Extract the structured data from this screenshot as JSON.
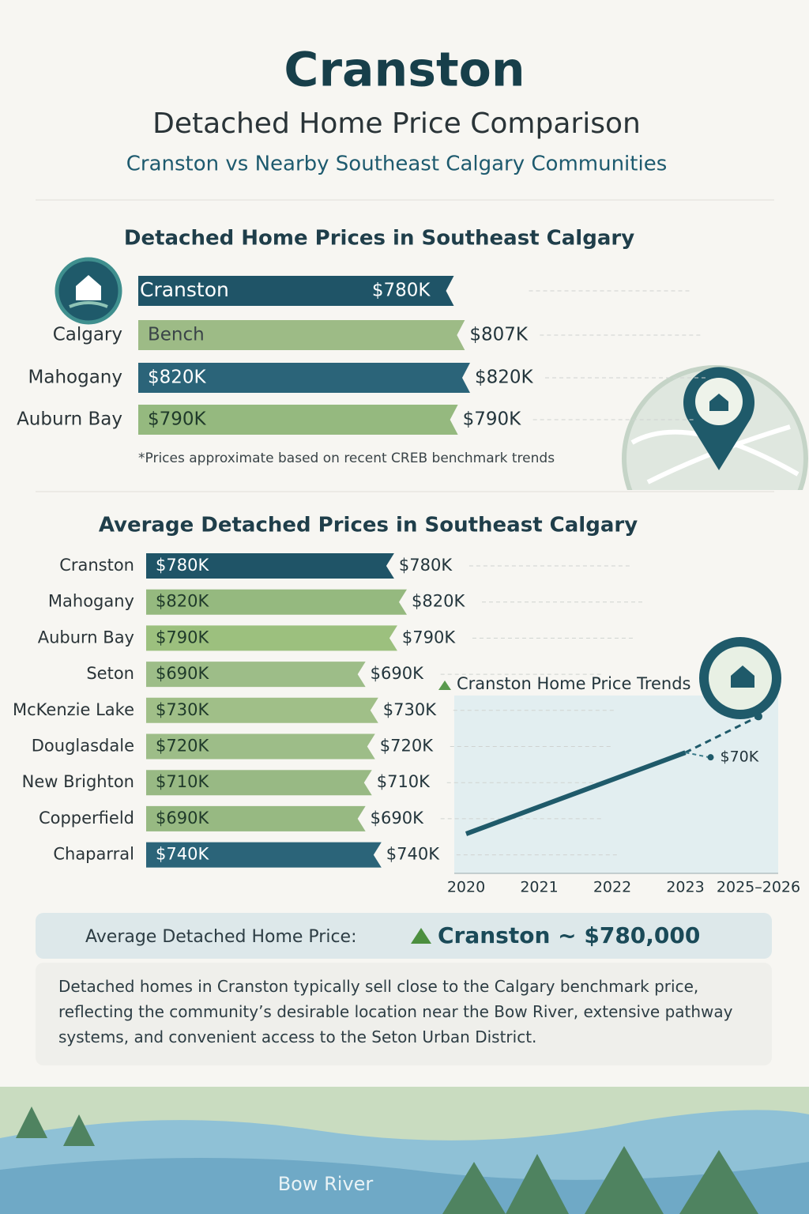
{
  "header": {
    "title": "Cranston",
    "subtitle": "Detached Home Price Comparison",
    "tagline": "Cranston vs Nearby Southeast Calgary Communities"
  },
  "chart_data": [
    {
      "type": "bar",
      "title": "Detached Home Prices in Southeast Calgary",
      "categories": [
        "Cranston",
        "Calgary",
        "Mahogany",
        "Auburn Bay"
      ],
      "values": [
        780,
        807,
        820,
        790
      ],
      "value_labels": [
        "$780K",
        "$807K",
        "$820K",
        "$790K"
      ],
      "inner_labels": [
        null,
        "Bench",
        "$820K",
        "$790K"
      ],
      "colors": [
        "#1f5467",
        "#9dbb86",
        "#2b6479",
        "#95b97f"
      ],
      "note": "*Prices approximate based on recent CREB benchmark trends"
    },
    {
      "type": "bar",
      "title": "Average Detached Prices in Southeast Calgary",
      "categories": [
        "Cranston",
        "Mahogany",
        "Auburn Bay",
        "Seton",
        "McKenzie Lake",
        "Douglasdale",
        "New Brighton",
        "Copperfield",
        "Chaparral"
      ],
      "values": [
        780,
        820,
        790,
        690,
        730,
        720,
        710,
        690,
        740
      ],
      "value_labels": [
        "$780K",
        "$820K",
        "$790K",
        "$690K",
        "$730K",
        "$720K",
        "$710K",
        "$690K",
        "$740K"
      ],
      "colors": [
        "#1f5467",
        "#95b97f",
        "#9cc07e",
        "#9dbd88",
        "#a0bf88",
        "#9dbd88",
        "#98b984",
        "#97b982",
        "#2b6479"
      ]
    },
    {
      "type": "line",
      "title": "Cranston Home Price Trends",
      "categories": [
        "2020",
        "2021",
        "2022",
        "2023",
        "2025–2026"
      ],
      "series": [
        {
          "color": "#1f5a6a",
          "values": [
            520,
            580,
            640,
            700,
            null
          ]
        },
        {
          "color": "#1f5a6a",
          "dash": true,
          "values": [
            null,
            null,
            null,
            700,
            780
          ]
        }
      ],
      "ylim": [
        450,
        800
      ],
      "annotation": "$70K"
    }
  ],
  "summary": {
    "label": "Average Detached Home Price:",
    "value": "Cranston ~ $780,000"
  },
  "description": "Detached homes in Cranston typically sell close to the Calgary benchmark price, reflecting the community’s desirable location near the Bow River, extensive pathway systems, and convenient access to the Seton Urban District.",
  "footer": {
    "label": "Bow River"
  }
}
